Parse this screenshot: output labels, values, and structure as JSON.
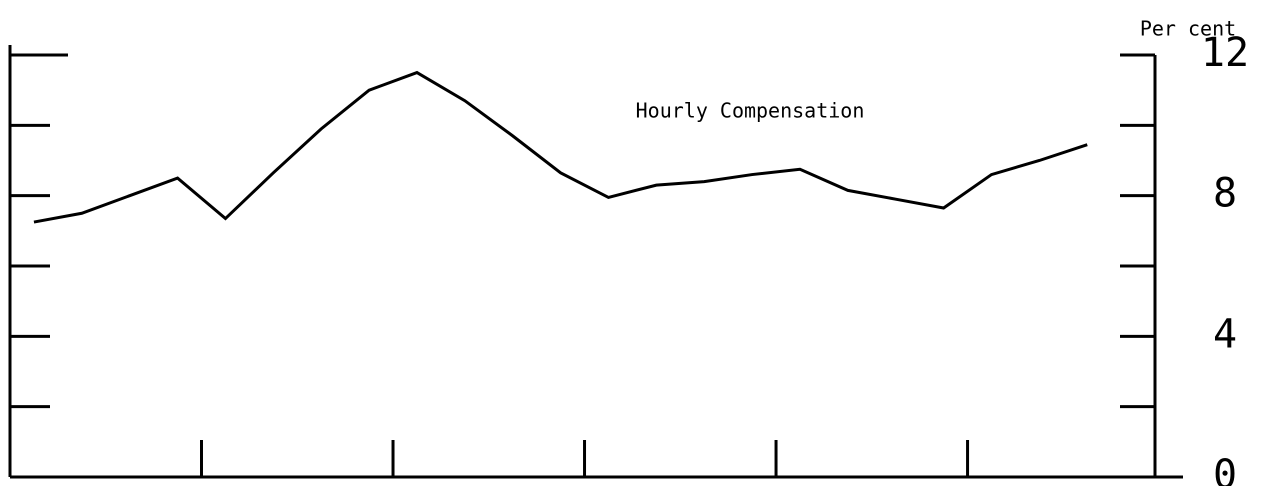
{
  "chart_data": {
    "type": "line",
    "y_axis_label": "Per cent",
    "annotation": "Hourly Compensation",
    "x": [
      0,
      1,
      2,
      3,
      4,
      5,
      6,
      7,
      8,
      9,
      10,
      11,
      12,
      13,
      14,
      15,
      16,
      17,
      18,
      19,
      20,
      21,
      22
    ],
    "series": [
      {
        "name": "Hourly Compensation",
        "color": "#000000",
        "values": [
          7.25,
          7.5,
          8.0,
          8.5,
          7.35,
          8.65,
          9.9,
          11.0,
          11.5,
          10.7,
          9.7,
          8.65,
          7.95,
          8.3,
          8.4,
          8.6,
          8.75,
          8.15,
          7.9,
          7.65,
          8.6,
          9.0,
          9.45
        ]
      }
    ],
    "xlim": [
      -0.5,
      24
    ],
    "xticks": [
      3.5,
      7.5,
      11.5,
      15.5,
      19.5
    ],
    "ylim": [
      0,
      12
    ],
    "yticks": [
      0,
      4,
      8,
      12
    ],
    "minor_yticks": [
      2,
      6,
      10
    ]
  }
}
